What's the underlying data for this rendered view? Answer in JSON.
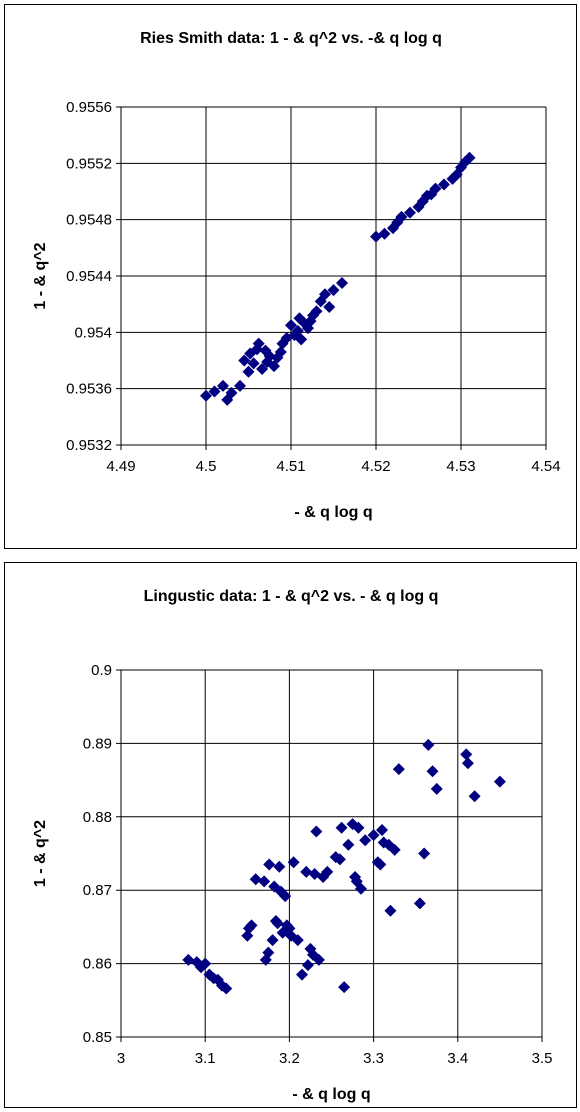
{
  "chart_data": [
    {
      "type": "scatter",
      "title": "Ries Smith data: 1 - & q^2   vs. -& q log q",
      "xlabel": "- & q log q",
      "ylabel": "1 - & q^2",
      "xlim": [
        4.49,
        4.54
      ],
      "ylim": [
        0.9532,
        0.9556
      ],
      "x_ticks": [
        "4.49",
        "4.5",
        "4.51",
        "4.52",
        "4.53",
        "4.54"
      ],
      "y_ticks": [
        "0.9532",
        "0.9536",
        "0.954",
        "0.9544",
        "0.9548",
        "0.9552",
        "0.9556"
      ],
      "grid": true,
      "legend": "none",
      "marker_color": "#000080",
      "points": [
        [
          4.5,
          0.95355
        ],
        [
          4.501,
          0.95358
        ],
        [
          4.502,
          0.95362
        ],
        [
          4.5025,
          0.95352
        ],
        [
          4.503,
          0.95357
        ],
        [
          4.504,
          0.95362
        ],
        [
          4.5045,
          0.9538
        ],
        [
          4.505,
          0.95372
        ],
        [
          4.5052,
          0.95385
        ],
        [
          4.5056,
          0.95378
        ],
        [
          4.506,
          0.95388
        ],
        [
          4.5062,
          0.95392
        ],
        [
          4.5066,
          0.95374
        ],
        [
          4.507,
          0.95387
        ],
        [
          4.5072,
          0.95379
        ],
        [
          4.5075,
          0.95383
        ],
        [
          4.508,
          0.95376
        ],
        [
          4.5084,
          0.95382
        ],
        [
          4.5088,
          0.95386
        ],
        [
          4.509,
          0.95392
        ],
        [
          4.5095,
          0.95396
        ],
        [
          4.51,
          0.95405
        ],
        [
          4.5104,
          0.95398
        ],
        [
          4.5108,
          0.95401
        ],
        [
          4.511,
          0.9541
        ],
        [
          4.5112,
          0.95395
        ],
        [
          4.5115,
          0.95407
        ],
        [
          4.512,
          0.95403
        ],
        [
          4.5123,
          0.95408
        ],
        [
          4.5126,
          0.95412
        ],
        [
          4.513,
          0.95415
        ],
        [
          4.5135,
          0.95422
        ],
        [
          4.514,
          0.95427
        ],
        [
          4.5145,
          0.95418
        ],
        [
          4.515,
          0.9543
        ],
        [
          4.516,
          0.95435
        ],
        [
          4.52,
          0.95468
        ],
        [
          4.521,
          0.9547
        ],
        [
          4.522,
          0.95474
        ],
        [
          4.5225,
          0.95478
        ],
        [
          4.523,
          0.95482
        ],
        [
          4.524,
          0.95485
        ],
        [
          4.525,
          0.95489
        ],
        [
          4.5255,
          0.95493
        ],
        [
          4.526,
          0.95497
        ],
        [
          4.5265,
          0.95498
        ],
        [
          4.527,
          0.95502
        ],
        [
          4.528,
          0.95505
        ],
        [
          4.529,
          0.95509
        ],
        [
          4.5295,
          0.95512
        ],
        [
          4.53,
          0.95517
        ],
        [
          4.5305,
          0.95521
        ],
        [
          4.531,
          0.95524
        ]
      ]
    },
    {
      "type": "scatter",
      "title": "Lingustic data: 1 - & q^2   vs.   - & q log q",
      "xlabel": "- & q log q",
      "ylabel": "1 - & q^2",
      "xlim": [
        3,
        3.5
      ],
      "ylim": [
        0.85,
        0.9
      ],
      "x_ticks": [
        "3",
        "3.1",
        "3.2",
        "3.3",
        "3.4",
        "3.5"
      ],
      "y_ticks": [
        "0.85",
        "0.86",
        "0.87",
        "0.88",
        "0.89",
        "0.9"
      ],
      "grid": true,
      "legend": "none",
      "marker_color": "#000080",
      "points": [
        [
          3.08,
          0.8605
        ],
        [
          3.09,
          0.8602
        ],
        [
          3.095,
          0.8595
        ],
        [
          3.1,
          0.86
        ],
        [
          3.105,
          0.8585
        ],
        [
          3.11,
          0.858
        ],
        [
          3.115,
          0.8578
        ],
        [
          3.12,
          0.857
        ],
        [
          3.125,
          0.8566
        ],
        [
          3.15,
          0.8638
        ],
        [
          3.152,
          0.8648
        ],
        [
          3.155,
          0.8652
        ],
        [
          3.16,
          0.8715
        ],
        [
          3.17,
          0.8712
        ],
        [
          3.172,
          0.8605
        ],
        [
          3.175,
          0.8615
        ],
        [
          3.176,
          0.8735
        ],
        [
          3.18,
          0.8632
        ],
        [
          3.182,
          0.8705
        ],
        [
          3.184,
          0.8658
        ],
        [
          3.186,
          0.8655
        ],
        [
          3.188,
          0.8732
        ],
        [
          3.19,
          0.8698
        ],
        [
          3.192,
          0.8642
        ],
        [
          3.195,
          0.8692
        ],
        [
          3.197,
          0.8652
        ],
        [
          3.2,
          0.8648
        ],
        [
          3.202,
          0.8638
        ],
        [
          3.205,
          0.8738
        ],
        [
          3.21,
          0.8632
        ],
        [
          3.215,
          0.8585
        ],
        [
          3.22,
          0.8725
        ],
        [
          3.222,
          0.8598
        ],
        [
          3.225,
          0.862
        ],
        [
          3.228,
          0.8612
        ],
        [
          3.23,
          0.8722
        ],
        [
          3.232,
          0.878
        ],
        [
          3.235,
          0.8605
        ],
        [
          3.24,
          0.8718
        ],
        [
          3.245,
          0.8725
        ],
        [
          3.255,
          0.8745
        ],
        [
          3.26,
          0.8742
        ],
        [
          3.262,
          0.8785
        ],
        [
          3.265,
          0.8568
        ],
        [
          3.27,
          0.8762
        ],
        [
          3.275,
          0.879
        ],
        [
          3.278,
          0.8718
        ],
        [
          3.28,
          0.8712
        ],
        [
          3.282,
          0.8785
        ],
        [
          3.285,
          0.8702
        ],
        [
          3.29,
          0.8768
        ],
        [
          3.3,
          0.8775
        ],
        [
          3.305,
          0.8738
        ],
        [
          3.308,
          0.8735
        ],
        [
          3.31,
          0.8782
        ],
        [
          3.312,
          0.8765
        ],
        [
          3.318,
          0.8762
        ],
        [
          3.32,
          0.8672
        ],
        [
          3.325,
          0.8755
        ],
        [
          3.33,
          0.8865
        ],
        [
          3.355,
          0.8682
        ],
        [
          3.36,
          0.875
        ],
        [
          3.365,
          0.8898
        ],
        [
          3.37,
          0.8862
        ],
        [
          3.375,
          0.8838
        ],
        [
          3.41,
          0.8885
        ],
        [
          3.412,
          0.8873
        ],
        [
          3.42,
          0.8828
        ],
        [
          3.45,
          0.8848
        ]
      ]
    }
  ]
}
